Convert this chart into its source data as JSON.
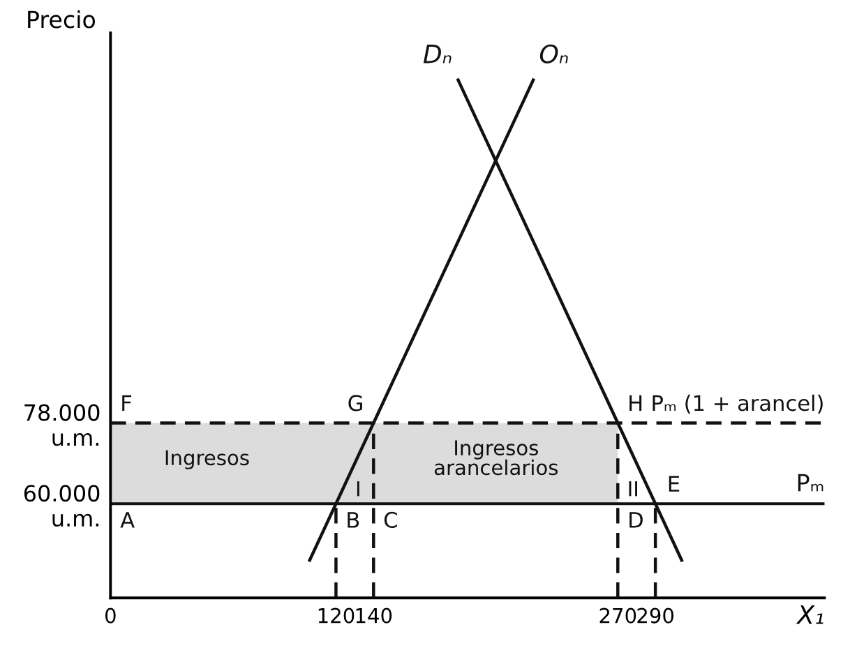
{
  "chart_data": {
    "type": "line",
    "ylabel": "Precio",
    "xlabel": "X₁",
    "xlim": [
      0,
      380
    ],
    "ylim": [
      39000,
      165000
    ],
    "xticks": [
      0,
      120,
      140,
      270,
      290
    ],
    "yticks": [
      {
        "value": 60000,
        "label": "60.000\nu.m."
      },
      {
        "value": 78000,
        "label": "78.000\nu.m."
      }
    ],
    "series": [
      {
        "name": "Pₘ (1 + arancel)",
        "color": "#111111",
        "line_style": "dashed",
        "x": [
          0,
          270,
          380
        ],
        "values": [
          78000,
          78000,
          78000
        ],
        "lower": [
          60000,
          60000,
          null
        ],
        "upper": [
          78000,
          78000,
          null
        ]
      },
      {
        "name": "Dₙ",
        "color": "#111111",
        "x": [
          185,
          270,
          290,
          304
        ],
        "values": [
          154500,
          78000,
          60000,
          47400
        ]
      },
      {
        "name": "Oₙ",
        "color": "#111111",
        "x": [
          106,
          120,
          140,
          225
        ],
        "values": [
          47400,
          60000,
          78000,
          154500
        ]
      },
      {
        "color": "#111111",
        "line_style": "dashed",
        "x": [
          120,
          120
        ],
        "values": [
          39000,
          60000
        ]
      },
      {
        "color": "#111111",
        "line_style": "dashed",
        "x": [
          140,
          140
        ],
        "values": [
          39000,
          78000
        ]
      },
      {
        "color": "#111111",
        "line_style": "dashed",
        "x": [
          270,
          270
        ],
        "values": [
          39000,
          78000
        ]
      },
      {
        "color": "#111111",
        "line_style": "dashed",
        "x": [
          290,
          290
        ],
        "values": [
          39000,
          60000
        ]
      }
    ],
    "ref_lines": [
      {
        "axis": "y",
        "value": 60000,
        "label": "Pₘ",
        "color": "#111111"
      }
    ],
    "annotations": [
      {
        "text": "A",
        "x": 0,
        "y": 60000
      },
      {
        "text": "B",
        "x": 120,
        "y": 60000
      },
      {
        "text": "C",
        "x": 140,
        "y": 60000
      },
      {
        "text": "D",
        "x": 270,
        "y": 60000
      },
      {
        "text": "E",
        "x": 290,
        "y": 60000
      },
      {
        "text": "F",
        "x": 0,
        "y": 78000
      },
      {
        "text": "G",
        "x": 140,
        "y": 78000
      },
      {
        "text": "H",
        "x": 270,
        "y": 78000
      },
      "Ingresos",
      "Ingresos\narancelarios",
      "I",
      "II"
    ]
  }
}
